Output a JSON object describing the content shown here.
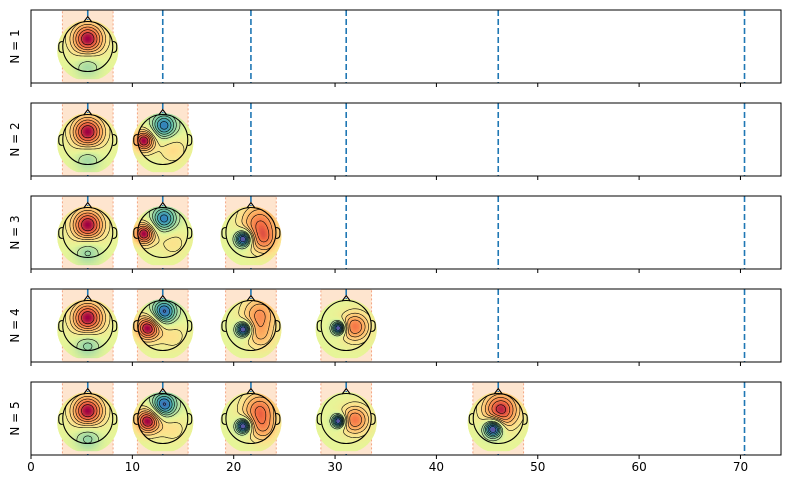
{
  "chart_data": {
    "type": "topomap-timeline",
    "x_range": [
      0,
      74
    ],
    "x_ticks": [
      "0",
      "10",
      "20",
      "30",
      "40",
      "50",
      "60",
      "70"
    ],
    "x_tick_values": [
      0,
      10,
      20,
      30,
      40,
      50,
      60,
      70
    ],
    "line_color": "#1f77b4",
    "band_color": "#fdd0a8",
    "band_edge_color": "#f4a582",
    "dashed_lines_x": [
      5.6,
      13.0,
      21.7,
      31.1,
      46.1,
      70.4
    ],
    "band_half_width": 2.5,
    "rows": [
      {
        "ylabel": "N = 1",
        "topomaps": [
          {
            "x": 5.6,
            "peaks": [
              {
                "dx": 0.0,
                "dy": -0.3,
                "s": 0.45,
                "a": 1.0
              },
              {
                "dx": 0.0,
                "dy": 0.75,
                "s": 0.35,
                "a": -0.3
              }
            ]
          }
        ]
      },
      {
        "ylabel": "N = 2",
        "topomaps": [
          {
            "x": 5.6,
            "peaks": [
              {
                "dx": 0.0,
                "dy": -0.3,
                "s": 0.45,
                "a": 1.0
              },
              {
                "dx": 0.0,
                "dy": 0.75,
                "s": 0.35,
                "a": -0.3
              }
            ]
          },
          {
            "x": 13.0,
            "peaks": [
              {
                "dx": -0.75,
                "dy": 0.05,
                "s": 0.3,
                "a": 0.75
              },
              {
                "dx": 0.05,
                "dy": -0.55,
                "s": 0.35,
                "a": -0.6
              },
              {
                "dx": 0.4,
                "dy": 0.4,
                "s": 0.4,
                "a": 0.2
              }
            ]
          }
        ]
      },
      {
        "ylabel": "N = 3",
        "topomaps": [
          {
            "x": 5.6,
            "peaks": [
              {
                "dx": 0.0,
                "dy": -0.3,
                "s": 0.45,
                "a": 0.85
              },
              {
                "dx": 0.0,
                "dy": 0.75,
                "s": 0.35,
                "a": -0.3
              }
            ]
          },
          {
            "x": 13.0,
            "peaks": [
              {
                "dx": -0.75,
                "dy": 0.05,
                "s": 0.3,
                "a": 0.7
              },
              {
                "dx": 0.05,
                "dy": -0.55,
                "s": 0.35,
                "a": -0.55
              },
              {
                "dx": 0.4,
                "dy": 0.4,
                "s": 0.4,
                "a": 0.15
              }
            ]
          },
          {
            "x": 21.7,
            "peaks": [
              {
                "dx": -0.3,
                "dy": 0.25,
                "s": 0.22,
                "a": -1.0
              },
              {
                "dx": 0.35,
                "dy": -0.4,
                "s": 0.55,
                "a": 0.55
              },
              {
                "dx": 0.55,
                "dy": 0.35,
                "s": 0.4,
                "a": 0.4
              }
            ]
          }
        ]
      },
      {
        "ylabel": "N = 4",
        "topomaps": [
          {
            "x": 5.6,
            "peaks": [
              {
                "dx": 0.0,
                "dy": -0.3,
                "s": 0.45,
                "a": 0.8
              },
              {
                "dx": 0.0,
                "dy": 0.75,
                "s": 0.35,
                "a": -0.3
              }
            ]
          },
          {
            "x": 13.0,
            "peaks": [
              {
                "dx": -0.6,
                "dy": 0.1,
                "s": 0.35,
                "a": 0.45
              },
              {
                "dx": 0.05,
                "dy": -0.55,
                "s": 0.35,
                "a": -0.4
              },
              {
                "dx": 0.4,
                "dy": 0.4,
                "s": 0.4,
                "a": 0.1
              }
            ]
          },
          {
            "x": 21.7,
            "peaks": [
              {
                "dx": -0.3,
                "dy": 0.15,
                "s": 0.2,
                "a": -1.0
              },
              {
                "dx": 0.35,
                "dy": -0.45,
                "s": 0.5,
                "a": 0.5
              },
              {
                "dx": 0.4,
                "dy": 0.45,
                "s": 0.4,
                "a": 0.3
              }
            ]
          },
          {
            "x": 31.1,
            "peaks": [
              {
                "dx": -0.3,
                "dy": 0.1,
                "s": 0.18,
                "a": -1.0
              },
              {
                "dx": 0.35,
                "dy": 0.05,
                "s": 0.4,
                "a": 0.6
              }
            ]
          }
        ]
      },
      {
        "ylabel": "N = 5",
        "topomaps": [
          {
            "x": 5.6,
            "peaks": [
              {
                "dx": 0.0,
                "dy": -0.3,
                "s": 0.45,
                "a": 0.8
              },
              {
                "dx": 0.0,
                "dy": 0.75,
                "s": 0.35,
                "a": -0.3
              }
            ]
          },
          {
            "x": 13.0,
            "peaks": [
              {
                "dx": -0.6,
                "dy": 0.1,
                "s": 0.35,
                "a": 0.45
              },
              {
                "dx": 0.05,
                "dy": -0.55,
                "s": 0.35,
                "a": -0.4
              },
              {
                "dx": 0.4,
                "dy": 0.4,
                "s": 0.4,
                "a": 0.1
              }
            ]
          },
          {
            "x": 21.7,
            "peaks": [
              {
                "dx": -0.3,
                "dy": 0.3,
                "s": 0.2,
                "a": -1.0
              },
              {
                "dx": 0.35,
                "dy": -0.35,
                "s": 0.5,
                "a": 0.6
              },
              {
                "dx": 0.5,
                "dy": 0.45,
                "s": 0.4,
                "a": 0.35
              }
            ]
          },
          {
            "x": 31.1,
            "peaks": [
              {
                "dx": -0.3,
                "dy": 0.1,
                "s": 0.18,
                "a": -1.0
              },
              {
                "dx": 0.35,
                "dy": 0.05,
                "s": 0.4,
                "a": 0.6
              }
            ]
          },
          {
            "x": 46.1,
            "peaks": [
              {
                "dx": -0.2,
                "dy": 0.4,
                "s": 0.25,
                "a": -0.8
              },
              {
                "dx": 0.1,
                "dy": -0.35,
                "s": 0.5,
                "a": 0.6
              }
            ]
          }
        ]
      }
    ]
  }
}
